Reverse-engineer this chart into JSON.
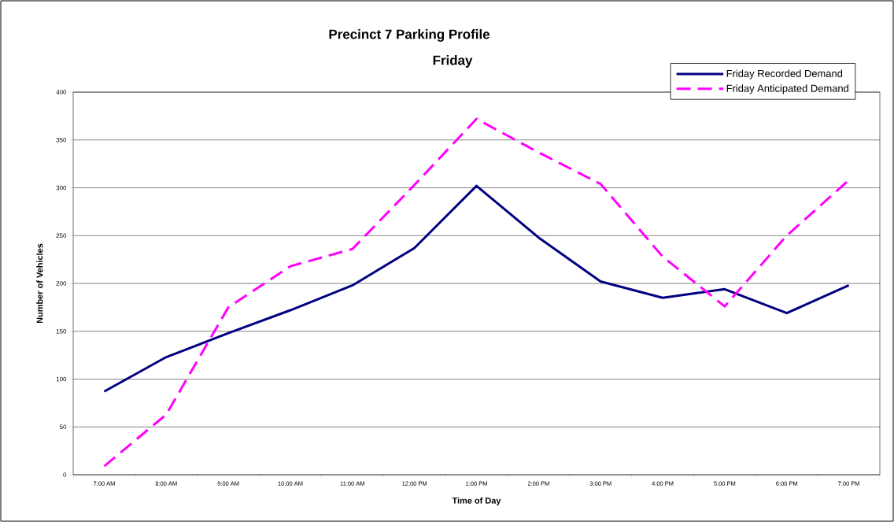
{
  "chart_data": {
    "type": "line",
    "title": "Precinct 7 Parking Profile",
    "subtitle": "Friday",
    "xlabel": "Time of Day",
    "ylabel": "Number of Vehicles",
    "categories": [
      "7:00 AM",
      "8:00 AM",
      "9:00 AM",
      "10:00 AM",
      "11:00 AM",
      "12:00 PM",
      "1:00 PM",
      "2:00 PM",
      "3:00 PM",
      "4:00 PM",
      "5:00 PM",
      "6:00 PM",
      "7:00 PM"
    ],
    "series": [
      {
        "name": "Friday Recorded Demand",
        "color": "#000080",
        "line_style": "solid",
        "values": [
          87,
          123,
          148,
          172,
          198,
          237,
          302,
          248,
          202,
          185,
          194,
          169,
          198
        ]
      },
      {
        "name": "Friday Anticipated Demand",
        "color": "#ff00ff",
        "line_style": "dashed",
        "values": [
          9,
          63,
          175,
          218,
          236,
          303,
          372,
          337,
          304,
          228,
          176,
          250,
          308
        ]
      }
    ],
    "ylim": [
      0,
      400
    ],
    "yticks": [
      0,
      50,
      100,
      150,
      200,
      250,
      300,
      350,
      400
    ],
    "grid": "y",
    "legend": "top right",
    "marker": "none"
  }
}
